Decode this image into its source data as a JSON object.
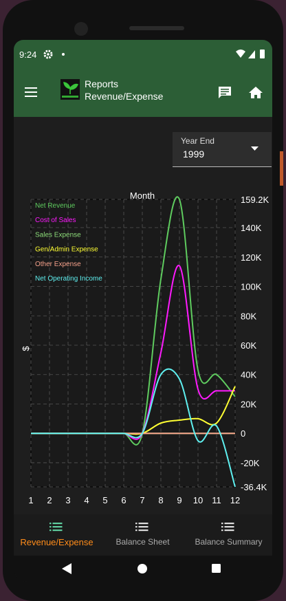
{
  "status_bar": {
    "time": "9:24"
  },
  "app_bar": {
    "title": "Reports",
    "subtitle": "Revenue/Expense"
  },
  "dropdown": {
    "label": "Year End",
    "value": "1999"
  },
  "chart_data": {
    "type": "line",
    "x_label": "Month",
    "y_label": "$",
    "x": [
      1,
      2,
      3,
      4,
      5,
      6,
      7,
      8,
      9,
      10,
      11,
      12
    ],
    "xlim": [
      1,
      12
    ],
    "xticks": [
      1,
      2,
      3,
      4,
      5,
      6,
      7,
      8,
      9,
      10,
      11,
      12
    ],
    "ylim": [
      -36400,
      159200
    ],
    "yticks": [
      {
        "value": 159200,
        "label": "159.2K"
      },
      {
        "value": 140000,
        "label": "140K"
      },
      {
        "value": 120000,
        "label": "120K"
      },
      {
        "value": 100000,
        "label": "100K"
      },
      {
        "value": 80000,
        "label": "80K"
      },
      {
        "value": 60000,
        "label": "60K"
      },
      {
        "value": 40000,
        "label": "40K"
      },
      {
        "value": 20000,
        "label": "20K"
      },
      0,
      {
        "value": -20000,
        "label": "-20K"
      },
      {
        "value": -36400,
        "label": "-36.4K"
      }
    ],
    "grid": true,
    "legend": "top-left",
    "series": [
      {
        "name": "Net Revenue",
        "color": "#5fcc5f",
        "values": [
          0,
          0,
          0,
          0,
          0,
          0,
          0,
          105000,
          159200,
          43000,
          40000,
          25000
        ]
      },
      {
        "name": "Cost of Sales",
        "color": "#ff1aff",
        "values": [
          0,
          0,
          0,
          0,
          0,
          0,
          0,
          55000,
          114000,
          30000,
          29000,
          29000
        ]
      },
      {
        "name": "Sales Expense",
        "color": "#8ddc7a",
        "values": [
          0,
          0,
          0,
          0,
          0,
          0,
          0,
          0,
          0,
          0,
          0,
          0
        ]
      },
      {
        "name": "Gen/Admin Expense",
        "color": "#ffff33",
        "values": [
          0,
          0,
          0,
          0,
          0,
          0,
          0,
          7000,
          9000,
          10000,
          7000,
          32000
        ]
      },
      {
        "name": "Other Expense",
        "color": "#f4a08a",
        "values": [
          0,
          0,
          0,
          0,
          0,
          0,
          0,
          0,
          0,
          0,
          0,
          0
        ]
      },
      {
        "name": "Net Operating Income",
        "color": "#5ff0f0",
        "values": [
          0,
          0,
          0,
          0,
          0,
          0,
          0,
          40000,
          37000,
          -5000,
          5000,
          -36400
        ]
      }
    ]
  },
  "bottom_nav": {
    "items": [
      "Revenue/Expense",
      "Balance Sheet",
      "Balance Summary"
    ],
    "active": 0
  }
}
